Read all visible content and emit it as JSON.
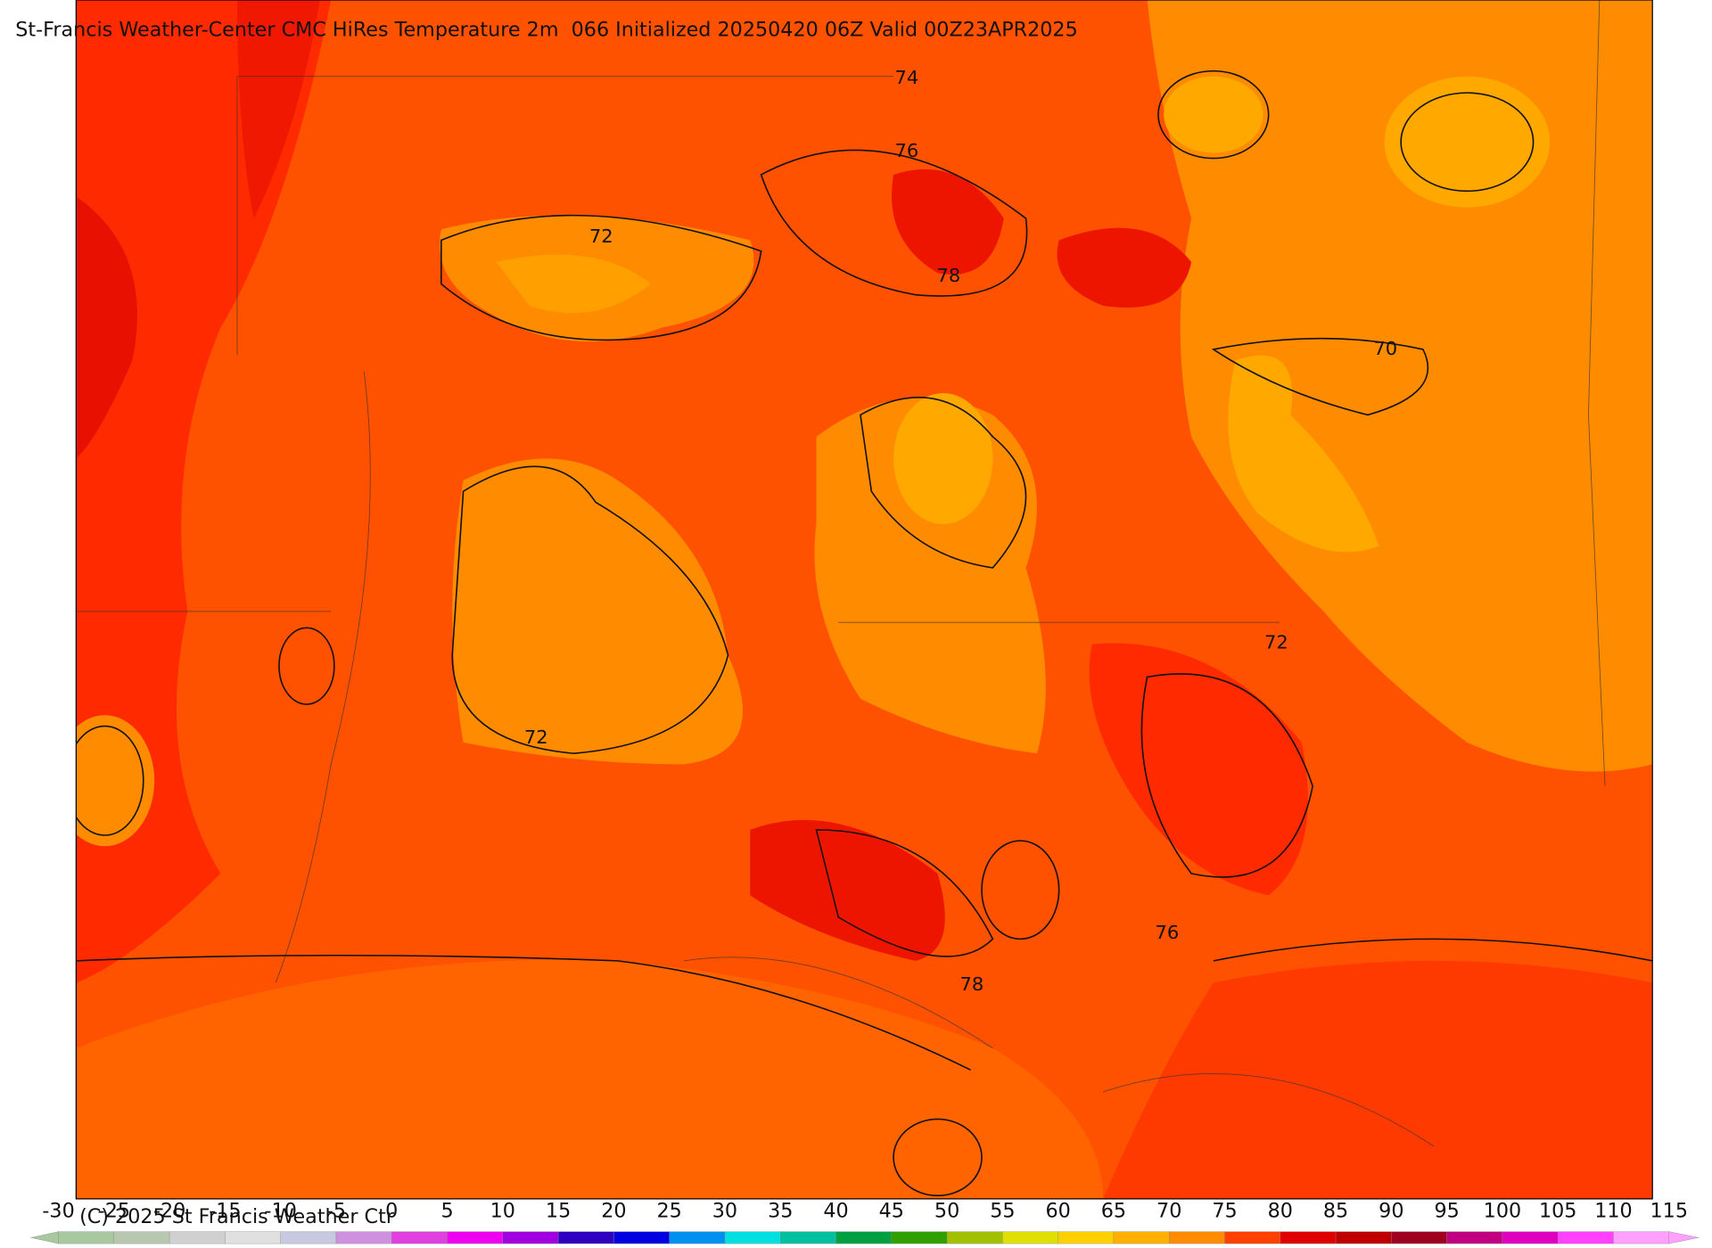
{
  "header": {
    "title": "St-Francis Weather-Center CMC HiRes Temperature 2m  066 Initialized 20250420 06Z Valid 00Z23APR2025"
  },
  "map": {
    "contour_labels": [
      74,
      76,
      72,
      78,
      70,
      72,
      72,
      76,
      78
    ]
  },
  "colorbar": {
    "ticks": [
      -30,
      -25,
      -20,
      -15,
      -10,
      -5,
      0,
      5,
      10,
      15,
      20,
      25,
      30,
      35,
      40,
      45,
      50,
      55,
      60,
      65,
      70,
      75,
      80,
      85,
      90,
      95,
      100,
      105,
      110,
      115
    ],
    "colors": [
      "#a8c8a0",
      "#b8c8b0",
      "#d0d0d0",
      "#e0e0e0",
      "#c8c8e0",
      "#d090e0",
      "#e040e0",
      "#f000f0",
      "#a000e0",
      "#3000c0",
      "#0000e0",
      "#0090f0",
      "#00e0e0",
      "#00c0a0",
      "#00a040",
      "#30a000",
      "#a0c000",
      "#e0e000",
      "#ffd000",
      "#ffb000",
      "#ff8c00",
      "#ff4000",
      "#e00000",
      "#c00000",
      "#a00020",
      "#c00080",
      "#e000c0",
      "#ff40ff",
      "#ffa0ff"
    ]
  },
  "footer": {
    "copyright": "(C) 2025 St Francis Weather Ctr"
  }
}
